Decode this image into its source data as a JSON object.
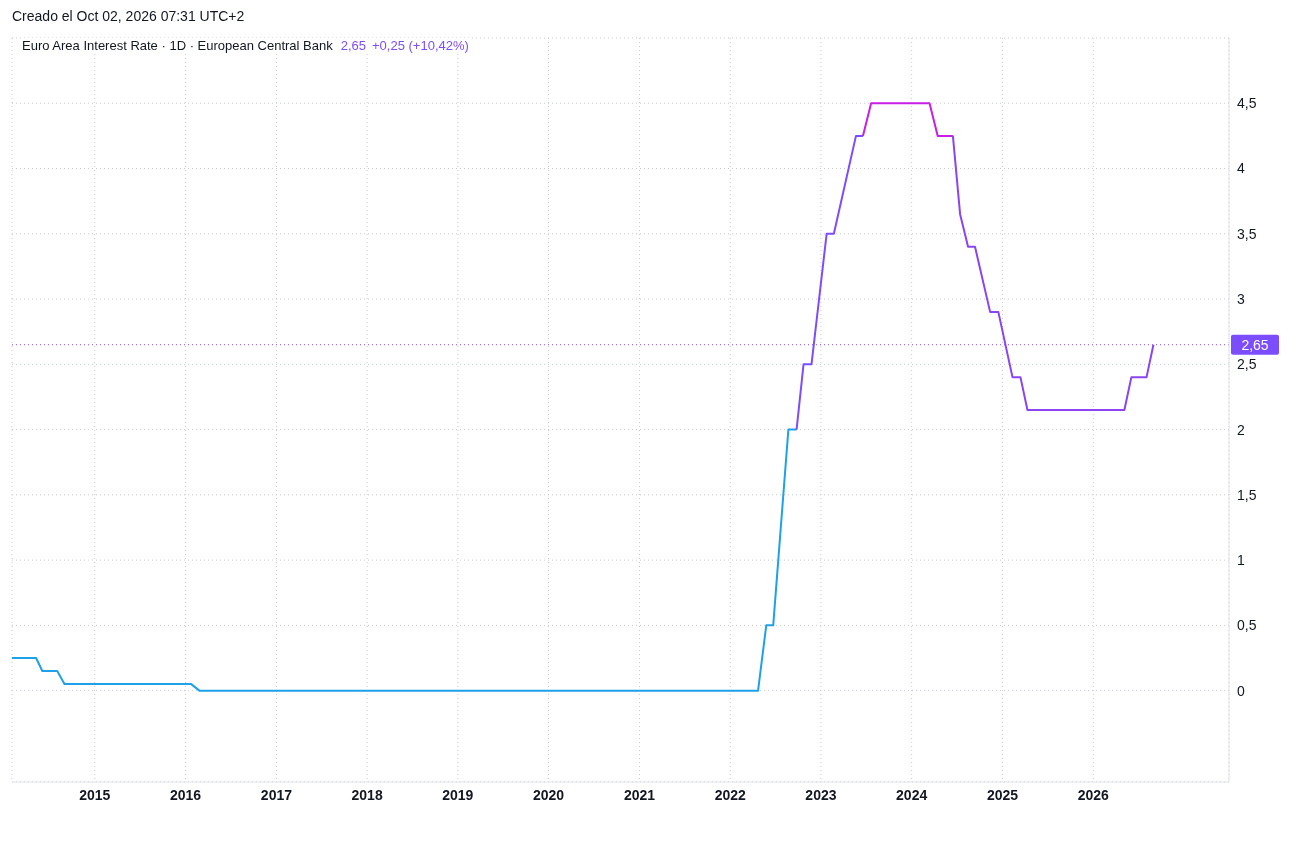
{
  "chart_data": {
    "type": "line",
    "title": "Euro Area Interest Rate · 1D · European Central Bank",
    "annotations": [
      "Creado el Oct 02, 2026 07:31 UTC+2",
      "2,65",
      "+0,25 (+10,42%)"
    ],
    "series": [
      {
        "color": "#1ea1e8",
        "x": [
          "2014-02-02",
          "2014-05-10",
          "2014-06-04",
          "2014-08-03",
          "2014-09-01",
          "2016-01-24",
          "2016-02-26",
          "2022-04-23",
          "2022-05-26",
          "2022-06-23",
          "2022-08-23",
          "2022-09-25"
        ],
        "values": [
          0.25,
          0.25,
          0.15,
          0.15,
          0.05,
          0.05,
          0,
          0,
          0.5,
          0.5,
          2.0,
          2.0
        ]
      },
      {
        "color": "#7c4dff",
        "x": [
          "2022-09-25",
          "2022-10-23",
          "2022-11-24",
          "2023-01-24",
          "2023-02-22",
          "2023-05-22",
          "2023-06-19"
        ],
        "values": [
          2.0,
          2.5,
          2.5,
          3.5,
          3.5,
          4.25,
          4.25
        ]
      },
      {
        "color": "#c81ee6",
        "x": [
          "2023-06-19",
          "2023-07-22",
          "2024-03-13",
          "2024-04-15",
          "2024-06-15"
        ],
        "values": [
          4.25,
          4.5,
          4.5,
          4.25,
          4.25
        ]
      },
      {
        "color": "#8a45f0",
        "x": [
          "2024-06-15",
          "2024-07-14",
          "2024-08-15",
          "2024-09-12",
          "2024-11-12",
          "2024-12-15",
          "2025-02-10",
          "2025-03-14",
          "2025-04-11",
          "2026-05-06",
          "2026-06-03",
          "2026-08-03",
          "2026-08-31"
        ],
        "values": [
          4.25,
          3.65,
          3.4,
          3.4,
          2.9,
          2.9,
          2.4,
          2.4,
          2.15,
          2.15,
          2.4,
          2.4,
          2.65
        ]
      }
    ],
    "xlim": [
      "2014-02-02",
      "2027-07-01"
    ],
    "xticks": [
      {
        "value": "2015",
        "label": "2015"
      },
      {
        "value": "2016",
        "label": "2016"
      },
      {
        "value": "2017",
        "label": "2017"
      },
      {
        "value": "2018",
        "label": "2018"
      },
      {
        "value": "2019",
        "label": "2019"
      },
      {
        "value": "2020",
        "label": "2020"
      },
      {
        "value": "2021",
        "label": "2021"
      },
      {
        "value": "2022",
        "label": "2022"
      },
      {
        "value": "2023",
        "label": "2023"
      },
      {
        "value": "2024",
        "label": "2024"
      },
      {
        "value": "2025",
        "label": "2025"
      },
      {
        "value": "2026",
        "label": "2026"
      }
    ],
    "ylim": [
      -0.7,
      5.0
    ],
    "yticks": [
      0,
      {
        "value": 0.5,
        "label": "0,5"
      },
      1,
      {
        "value": 1.5,
        "label": "1,5"
      },
      2,
      {
        "value": 2.5,
        "label": "2,5"
      },
      3,
      {
        "value": 3.5,
        "label": "3,5"
      },
      4,
      {
        "value": 4.5,
        "label": "4,5"
      }
    ],
    "ref_lines": [
      {
        "axis": "y",
        "value": 2.65,
        "label": "2,65",
        "color": "#7c4dff",
        "line_style": "dotted"
      }
    ],
    "grid": true,
    "marker": "none",
    "line_style": "solid"
  }
}
